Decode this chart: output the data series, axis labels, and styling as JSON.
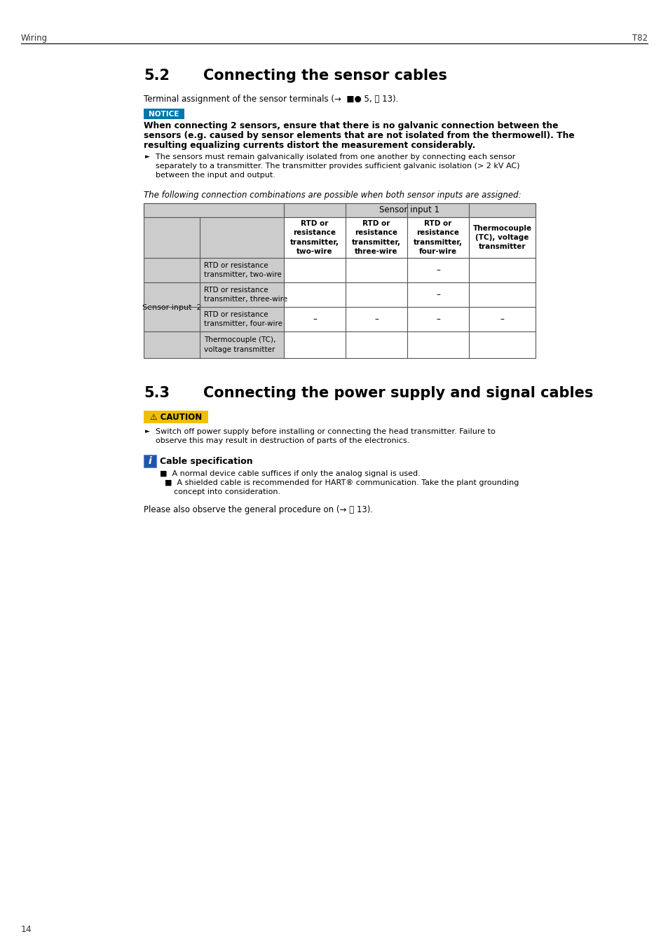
{
  "page_header_left": "Wiring",
  "page_header_right": "T82",
  "page_number": "14",
  "section_52_number": "5.2",
  "section_52_title": "Connecting the sensor cables",
  "section_52_intro": "Terminal assignment of the sensor terminals (→  ■● 5, ⎘ 13).",
  "notice_label": "NOTICE",
  "notice_bold_line1": "When connecting 2 sensors, ensure that there is no galvanic connection between the",
  "notice_bold_line2": "sensors (e.g. caused by sensor elements that are not isolated from the thermowell). The",
  "notice_bold_line3": "resulting equalizing currents distort the measurement considerably.",
  "bullet1_line1": "The sensors must remain galvanically isolated from one another by connecting each sensor",
  "bullet1_line2": "separately to a transmitter. The transmitter provides sufficient galvanic isolation (> 2 kV AC)",
  "bullet1_line3": "between the input and output.",
  "table_italic_intro": "The following connection combinations are possible when both sensor inputs are assigned:",
  "table_header_top": "Sensor input 1",
  "table_col3_header": "RTD or\nresistance\ntransmitter,\ntwo-wire",
  "table_col4_header": "RTD or\nresistance\ntransmitter,\nthree-wire",
  "table_col5_header": "RTD or\nresistance\ntransmitter,\nfour-wire",
  "table_col6_header": "Thermocouple\n(TC), voltage\ntransmitter",
  "table_row_label": "Sensor input  2",
  "table_rows": [
    {
      "label": "RTD or resistance\ntransmitter, two-wire",
      "cells": [
        "",
        "",
        "–",
        ""
      ]
    },
    {
      "label": "RTD or resistance\ntransmitter, three-wire",
      "cells": [
        "",
        "",
        "–",
        ""
      ]
    },
    {
      "label": "RTD or resistance\ntransmitter, four-wire",
      "cells": [
        "–",
        "–",
        "–",
        "–"
      ]
    },
    {
      "label": "Thermocouple (TC),\nvoltage transmitter",
      "cells": [
        "",
        "",
        "",
        ""
      ]
    }
  ],
  "section_53_number": "5.3",
  "section_53_title": "Connecting the power supply and signal cables",
  "caution_label": "⚠ CAUTION",
  "caution_line1": "Switch off power supply before installing or connecting the head transmitter. Failure to",
  "caution_line2": "observe this may result in destruction of parts of the electronics.",
  "info_title": "Cable specification",
  "info_bullet1": "A normal device cable suffices if only the analog signal is used.",
  "info_bullet2a": "A shielded cable is recommended for HART® communication. Take the plant grounding",
  "info_bullet2b": "concept into consideration.",
  "closing_text": "Please also observe the general procedure on (→ ⎘ 13).",
  "notice_bg_color": "#0077aa",
  "notice_text_color": "#ffffff",
  "caution_bg_color": "#f0c000",
  "caution_text_color": "#000000",
  "info_bg_color": "#2255aa",
  "info_text_color": "#ffffff",
  "table_header_bg": "#cccccc",
  "table_row_bg": "#cccccc",
  "table_data_bg": "#ffffff",
  "table_border_color": "#555555",
  "body_bg": "#ffffff",
  "text_color": "#000000"
}
